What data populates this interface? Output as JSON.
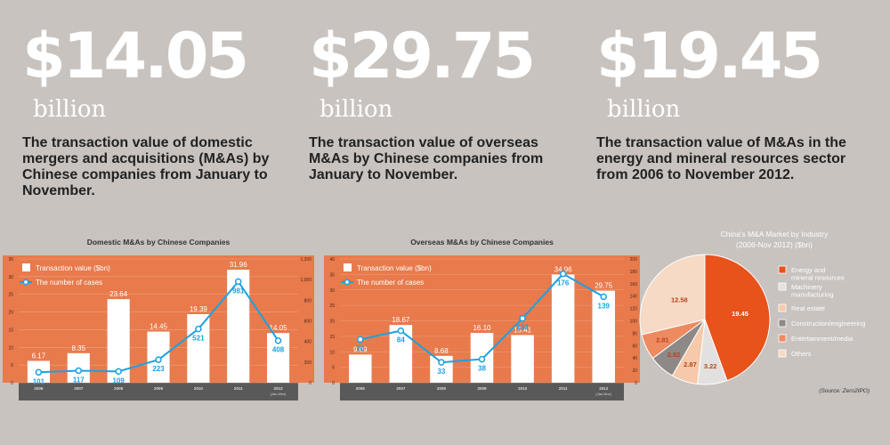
{
  "stats": [
    {
      "value": "$14.05",
      "unit": "billion",
      "desc": "The transaction value of domestic mergers and acquisitions (M&As) by Chinese companies from January to November."
    },
    {
      "value": "$29.75",
      "unit": "billion",
      "desc": "The transaction value of overseas M&As by Chinese companies from January to November."
    },
    {
      "value": "$19.45",
      "unit": "billion",
      "desc": "The transaction value of M&As in the energy and mineral resources sector from 2006 to November 2012."
    }
  ],
  "source": "(Source: Zero2IPO)",
  "colors": {
    "orange": "#e87a4c",
    "axis": "#595959",
    "line": "#1ba1e2",
    "bar": "#ffffff",
    "pie": [
      "#e8521b",
      "#e3e1df",
      "#f5c9a9",
      "#8d8986",
      "#ee8a5f",
      "#f6dac6"
    ]
  },
  "chart_data": [
    {
      "type": "bar",
      "title": "Domestic M&As by Chinese Companies",
      "legend": [
        "Transaction value ($bn)",
        "The number of cases"
      ],
      "categories": [
        "2006",
        "2007",
        "2008",
        "2009",
        "2010",
        "2011",
        "2012"
      ],
      "category_note": "(Jan-Nov)",
      "series": [
        {
          "name": "Transaction value ($bn)",
          "values": [
            6.17,
            8.35,
            23.64,
            14.45,
            19.39,
            31.96,
            14.05
          ]
        },
        {
          "name": "The number of cases",
          "values": [
            101,
            117,
            109,
            223,
            521,
            981,
            408
          ]
        }
      ],
      "case_labels": [
        "101",
        "117",
        "109",
        "223",
        "521",
        "981",
        "408"
      ],
      "ylim": [
        0,
        35
      ],
      "yticks": [
        "0",
        "5",
        "10",
        "15",
        "20",
        "25",
        "30",
        "35"
      ],
      "y2lim": [
        0,
        1200
      ],
      "y2ticks": [
        "0",
        "200",
        "400",
        "600",
        "800",
        "1,000",
        "1,200"
      ]
    },
    {
      "type": "bar",
      "title": "Overseas M&As by Chinese Companies",
      "legend": [
        "Transaction value ($bn)",
        "The number of cases"
      ],
      "categories": [
        "2006",
        "2007",
        "2008",
        "2009",
        "2010",
        "2011",
        "2012"
      ],
      "category_note": "(Jan-Nov)",
      "series": [
        {
          "name": "Transaction value ($bn)",
          "values": [
            9.09,
            18.67,
            8.68,
            16.1,
            15.41,
            34.96,
            29.75
          ]
        },
        {
          "name": "The number of cases",
          "values": [
            70,
            84,
            33,
            38,
            104,
            176,
            139
          ]
        }
      ],
      "case_labels": [
        "70",
        "84",
        "33",
        "38",
        "104",
        "176",
        "139"
      ],
      "ylim": [
        0,
        40
      ],
      "yticks": [
        "0",
        "5",
        "10",
        "15",
        "20",
        "25",
        "30",
        "35",
        "40"
      ],
      "y2lim": [
        0,
        200
      ],
      "y2ticks": [
        "0",
        "20",
        "40",
        "60",
        "80",
        "100",
        "120",
        "140",
        "160",
        "180",
        "200"
      ]
    },
    {
      "type": "pie",
      "title": "China's M&A Market by Industry",
      "subtitle": "(2006-Nov 2012) ($bn)",
      "labels": [
        "Energy and mineral resources",
        "Machinery manufacturing",
        "Real estate",
        "Construction/engineering",
        "Entertainment/media",
        "Others"
      ],
      "values": [
        19.45,
        3.22,
        2.87,
        2.82,
        2.81,
        12.58
      ]
    }
  ]
}
